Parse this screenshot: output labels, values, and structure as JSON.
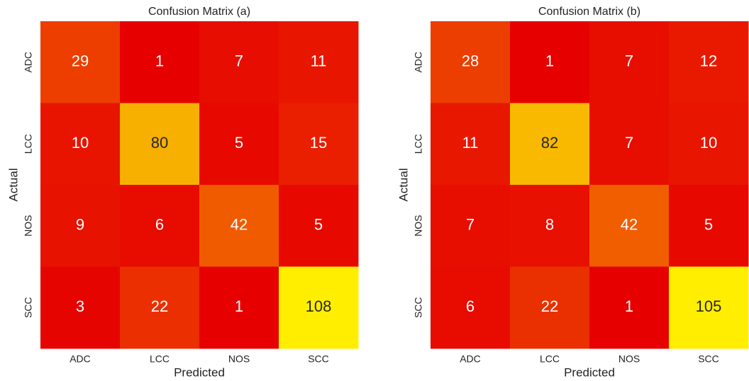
{
  "chart_data": [
    {
      "type": "heatmap",
      "title": "Confusion Matrix (a)",
      "x_label": "Predicted",
      "y_label": "Actual",
      "x_categories": [
        "ADC",
        "LCC",
        "NOS",
        "SCC"
      ],
      "y_categories": [
        "ADC",
        "LCC",
        "NOS",
        "SCC"
      ],
      "values": [
        [
          29,
          1,
          7,
          11
        ],
        [
          10,
          80,
          5,
          15
        ],
        [
          9,
          6,
          42,
          5
        ],
        [
          3,
          22,
          1,
          108
        ]
      ],
      "colormap": [
        "#e60000",
        "#ffee00"
      ]
    },
    {
      "type": "heatmap",
      "title": "Confusion Matrix (b)",
      "x_label": "Predicted",
      "y_label": "Actual",
      "x_categories": [
        "ADC",
        "LCC",
        "NOS",
        "SCC"
      ],
      "y_categories": [
        "ADC",
        "LCC",
        "NOS",
        "SCC"
      ],
      "values": [
        [
          28,
          1,
          7,
          12
        ],
        [
          11,
          82,
          7,
          10
        ],
        [
          7,
          8,
          42,
          5
        ],
        [
          6,
          22,
          1,
          105
        ]
      ],
      "colormap": [
        "#e60000",
        "#ffee00"
      ]
    }
  ]
}
